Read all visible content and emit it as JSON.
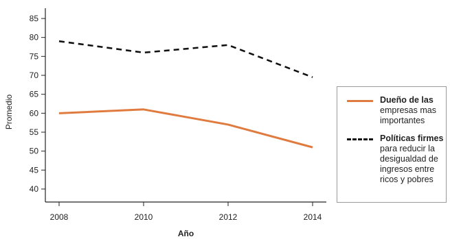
{
  "chart_data": {
    "type": "line",
    "title": "",
    "xlabel": "Año",
    "ylabel": "Promedio",
    "x": [
      2008,
      2010,
      2012,
      2014
    ],
    "ylim": [
      40,
      85
    ],
    "yticks": [
      40,
      45,
      50,
      55,
      60,
      65,
      70,
      75,
      80,
      85
    ],
    "xticks": [
      "2008",
      "2010",
      "2012",
      "2014"
    ],
    "series": [
      {
        "name": "Dueño de las empresas mas importantes",
        "legend_first": "Dueño de las",
        "legend_rest": "empresas mas importantes",
        "values": [
          60,
          61,
          57,
          51
        ],
        "color": "#e07b3f",
        "style": "solid"
      },
      {
        "name": "Políticas firmes para reducir la desigualdad de ingresos entre ricos y pobres",
        "legend_first": "Políticas firmes",
        "legend_rest": "para reducir la desigualdad de ingresos entre ricos y pobres",
        "values": [
          79,
          76,
          78,
          69.5
        ],
        "color": "#111111",
        "style": "dashed"
      }
    ],
    "grid": false,
    "legend_position": "right"
  }
}
